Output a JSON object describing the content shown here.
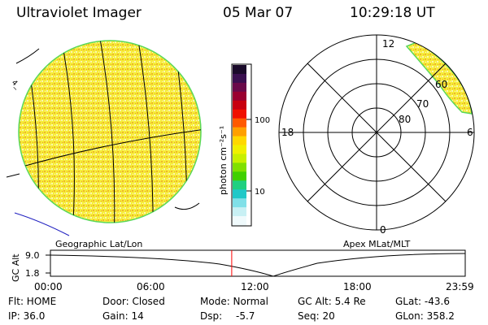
{
  "header": {
    "instrument": "Ultraviolet Imager",
    "date": "05 Mar 07",
    "time": "10:29:18 UT"
  },
  "colorbar": {
    "unit_label": "photon cm⁻²s⁻¹",
    "ticks": [
      "100",
      "10"
    ],
    "colors": [
      "#1a0a2a",
      "#3a1050",
      "#6a0a4a",
      "#9a0030",
      "#c80010",
      "#f01000",
      "#ff5a00",
      "#ffa000",
      "#ffd800",
      "#f0f000",
      "#c8f000",
      "#80e000",
      "#40d000",
      "#20d080",
      "#20c8c8",
      "#80e0e8",
      "#c8f0f4",
      "#f0fafc"
    ]
  },
  "left_map": {
    "caption": "Geographic Lat/Lon",
    "disk_fill": "#f6ec3a",
    "disk_edge": "#5ad85a"
  },
  "right_map": {
    "caption": "Apex MLat/MLT",
    "ring_labels": [
      "80",
      "70",
      "60"
    ],
    "mlt_labels": {
      "top": "12",
      "left": "18",
      "right": "6",
      "bottom": "0"
    },
    "oval_fill": "#f6ec3a",
    "oval_edge": "#5ad85a"
  },
  "altitude_plot": {
    "ylabel": "GC Alt",
    "yticks": [
      "9.0",
      "1.8"
    ],
    "xticks": [
      "00:00",
      "06:00",
      "12:00",
      "18:00",
      "23:59"
    ],
    "current_time_fraction": 0.437,
    "marker_color": "#ff0000"
  },
  "footer": {
    "flt": "Flt: HOME",
    "ip": "IP: 36.0",
    "door": "Door: Closed",
    "gain": "Gain: 14",
    "mode": "Mode: Normal",
    "dsp_label": "Dsp:",
    "dsp_value": "-5.7",
    "gc_alt": "GC Alt: 5.4 Re",
    "seq": "Seq: 20",
    "glat": "GLat: -43.6",
    "glon": "GLon: 358.2"
  }
}
